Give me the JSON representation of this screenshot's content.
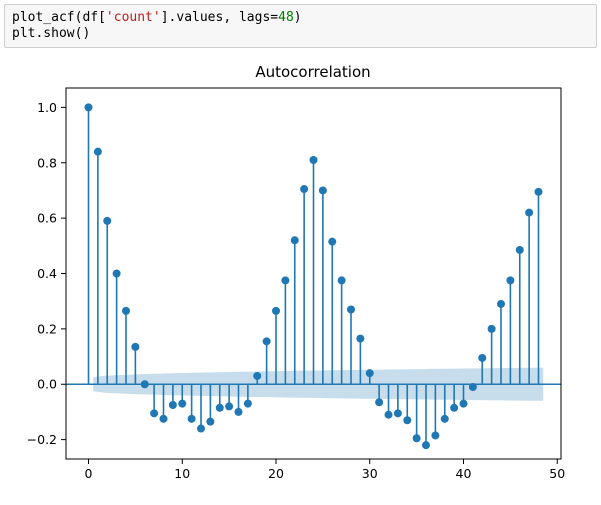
{
  "code": {
    "line1": {
      "pre": "plot_acf(df[",
      "str": "'count'",
      "mid": "].values, lags",
      "op": "=",
      "num": "48",
      "post": ")"
    },
    "line2": "plt.show()"
  },
  "chart_data": {
    "type": "stem",
    "title": "Autocorrelation",
    "xlabel": "",
    "ylabel": "",
    "xlim": [
      -2.4,
      50.4
    ],
    "ylim": [
      -0.27,
      1.07
    ],
    "xticks": [
      0,
      10,
      20,
      30,
      40,
      50
    ],
    "yticks": [
      -0.2,
      0.0,
      0.2,
      0.4,
      0.6,
      0.8,
      1.0
    ],
    "ytick_labels": [
      "−0.2",
      "0.0",
      "0.2",
      "0.4",
      "0.6",
      "0.8",
      "1.0"
    ],
    "grid": false,
    "lags": [
      0,
      1,
      2,
      3,
      4,
      5,
      6,
      7,
      8,
      9,
      10,
      11,
      12,
      13,
      14,
      15,
      16,
      17,
      18,
      19,
      20,
      21,
      22,
      23,
      24,
      25,
      26,
      27,
      28,
      29,
      30,
      31,
      32,
      33,
      34,
      35,
      36,
      37,
      38,
      39,
      40,
      41,
      42,
      43,
      44,
      45,
      46,
      47,
      48
    ],
    "acf": [
      1.0,
      0.84,
      0.59,
      0.4,
      0.265,
      0.135,
      0.0,
      -0.105,
      -0.125,
      -0.075,
      -0.07,
      -0.125,
      -0.16,
      -0.135,
      -0.085,
      -0.08,
      -0.1,
      -0.07,
      0.03,
      0.155,
      0.265,
      0.375,
      0.52,
      0.705,
      0.81,
      0.7,
      0.515,
      0.375,
      0.27,
      0.165,
      0.04,
      -0.065,
      -0.11,
      -0.105,
      -0.13,
      -0.195,
      -0.22,
      -0.185,
      -0.125,
      -0.085,
      -0.07,
      -0.01,
      0.095,
      0.2,
      0.29,
      0.375,
      0.485,
      0.62,
      0.695
    ],
    "confint_x": [
      0.5,
      48.5
    ],
    "confint_half_width_start": 0.025,
    "confint_half_width_end": 0.06,
    "colors": {
      "stem": "#1f77b4",
      "confint": "#1f77b4",
      "axis": "#000000"
    }
  }
}
